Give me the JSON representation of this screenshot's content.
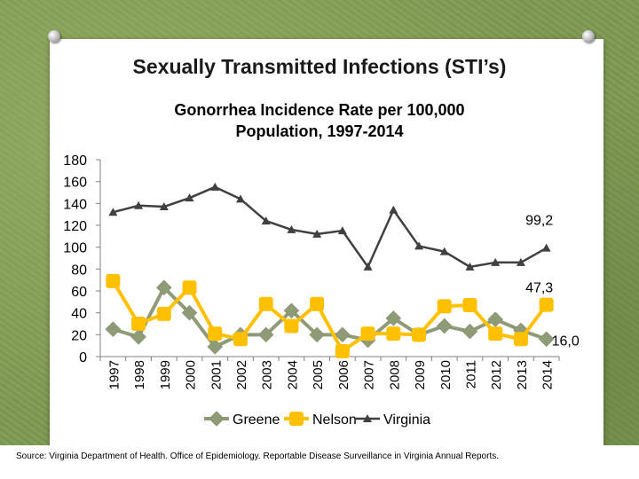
{
  "slide": {
    "title": "Sexually Transmitted Infections (STI’s)",
    "source": "Source: Virginia Department of Health. Office of Epidemiology. Reportable Disease Surveillance in Virginia Annual Reports."
  },
  "chart_data": {
    "type": "line",
    "title_line1": "Gonorrhea Incidence Rate per 100,000",
    "title_line2": "Population, 1997-2014",
    "categories": [
      "1997",
      "1998",
      "1999",
      "2000",
      "2001",
      "2002",
      "2003",
      "2004",
      "2005",
      "2006",
      "2007",
      "2008",
      "2009",
      "2010",
      "2011",
      "2012",
      "2013",
      "2014"
    ],
    "ylim": [
      0,
      180
    ],
    "yticks": [
      0,
      20,
      40,
      60,
      80,
      100,
      120,
      140,
      160,
      180
    ],
    "legend_position": "bottom",
    "series": [
      {
        "name": "Greene",
        "color": "#8f9b76",
        "marker": "diamond",
        "values": [
          25,
          18,
          63,
          40,
          9,
          20,
          20,
          42,
          20,
          20,
          15,
          35,
          20,
          28,
          23,
          34,
          24,
          16
        ]
      },
      {
        "name": "Nelson",
        "color": "#ffc000",
        "marker": "square",
        "values": [
          69,
          30,
          39,
          63,
          21,
          16,
          48,
          28,
          48,
          5,
          21,
          21,
          20,
          46,
          47,
          21,
          16,
          47.3
        ]
      },
      {
        "name": "Virginia",
        "color": "#404040",
        "marker": "triangle",
        "values": [
          132,
          138,
          137,
          145,
          155,
          144,
          124,
          116,
          112,
          115,
          82,
          134,
          101,
          96,
          82,
          86,
          86,
          99.2
        ]
      }
    ],
    "data_labels": [
      {
        "series": "Virginia",
        "index": 17,
        "text": "99,2"
      },
      {
        "series": "Nelson",
        "index": 17,
        "text": "47,3"
      },
      {
        "series": "Greene",
        "index": 17,
        "text": "16,0"
      }
    ]
  }
}
